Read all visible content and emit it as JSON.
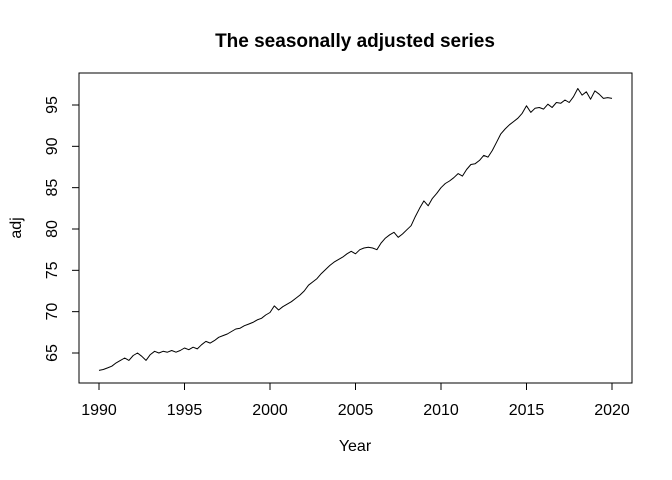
{
  "chart_data": {
    "type": "line",
    "title": "The seasonally adjusted series",
    "xlabel": "Year",
    "ylabel": "adj",
    "x_ticks": [
      1990,
      1995,
      2000,
      2005,
      2010,
      2015,
      2020
    ],
    "y_ticks": [
      65,
      70,
      75,
      80,
      85,
      90,
      95
    ],
    "xlim": [
      1988.83,
      2021.17
    ],
    "ylim": [
      61.37,
      98.87
    ],
    "grid": false,
    "legend": "none",
    "line_color": "#000000",
    "background_color": "#ffffff",
    "x_start": 1990.0,
    "x_step": 0.25,
    "values": [
      62.9,
      63.0,
      63.2,
      63.4,
      63.8,
      64.1,
      64.4,
      64.1,
      64.7,
      65.0,
      64.6,
      64.1,
      64.8,
      65.2,
      65.0,
      65.2,
      65.1,
      65.3,
      65.1,
      65.3,
      65.6,
      65.4,
      65.7,
      65.5,
      66.0,
      66.4,
      66.2,
      66.5,
      66.9,
      67.1,
      67.3,
      67.6,
      67.9,
      68.0,
      68.3,
      68.5,
      68.7,
      69.0,
      69.2,
      69.6,
      69.9,
      70.7,
      70.2,
      70.6,
      70.9,
      71.2,
      71.6,
      72.0,
      72.5,
      73.2,
      73.6,
      74.0,
      74.6,
      75.1,
      75.6,
      76.0,
      76.3,
      76.6,
      77.0,
      77.3,
      77.0,
      77.5,
      77.7,
      77.8,
      77.7,
      77.5,
      78.3,
      78.9,
      79.3,
      79.6,
      79.0,
      79.4,
      79.9,
      80.4,
      81.5,
      82.5,
      83.4,
      82.8,
      83.7,
      84.3,
      85.0,
      85.5,
      85.8,
      86.2,
      86.7,
      86.4,
      87.2,
      87.8,
      87.9,
      88.3,
      88.9,
      88.7,
      89.5,
      90.5,
      91.5,
      92.1,
      92.6,
      93.0,
      93.4,
      94.0,
      94.9,
      94.1,
      94.6,
      94.7,
      94.5,
      95.1,
      94.7,
      95.3,
      95.2,
      95.6,
      95.3,
      96.0,
      97.0,
      96.2,
      96.6,
      95.7,
      96.7,
      96.3,
      95.8,
      95.9,
      95.8
    ]
  }
}
